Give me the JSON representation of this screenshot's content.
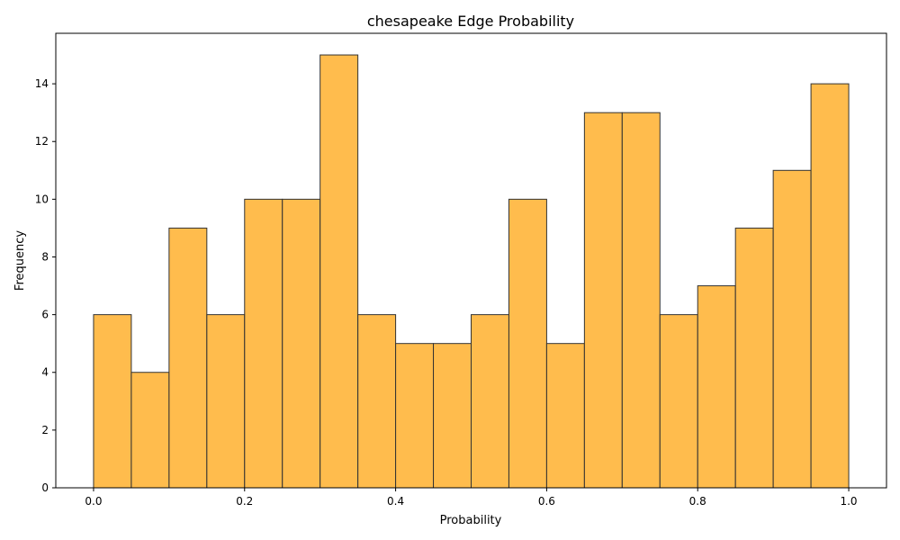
{
  "chart_data": {
    "type": "bar",
    "title": "chesapeake Edge Probability",
    "xlabel": "Probability",
    "ylabel": "Frequency",
    "bin_edges": [
      0.0,
      0.05,
      0.1,
      0.15,
      0.2,
      0.25,
      0.3,
      0.35,
      0.4,
      0.45,
      0.5,
      0.55,
      0.6,
      0.65,
      0.7,
      0.75,
      0.8,
      0.85,
      0.9,
      0.95,
      1.0
    ],
    "values": [
      6,
      4,
      9,
      6,
      10,
      10,
      15,
      6,
      5,
      5,
      6,
      10,
      5,
      13,
      13,
      6,
      7,
      9,
      11,
      14
    ],
    "xlim": [
      -0.05,
      1.05
    ],
    "ylim": [
      0,
      15.75
    ],
    "xticks": [
      0.0,
      0.2,
      0.4,
      0.6,
      0.8,
      1.0
    ],
    "xtick_labels": [
      "0.0",
      "0.2",
      "0.4",
      "0.6",
      "0.8",
      "1.0"
    ],
    "yticks": [
      0,
      2,
      4,
      6,
      8,
      10,
      12,
      14
    ],
    "ytick_labels": [
      "0",
      "2",
      "4",
      "6",
      "8",
      "10",
      "12",
      "14"
    ],
    "grid": false,
    "bar_color": "#FFB02E",
    "bar_opacity": 0.85,
    "edge_color": "#333333"
  }
}
